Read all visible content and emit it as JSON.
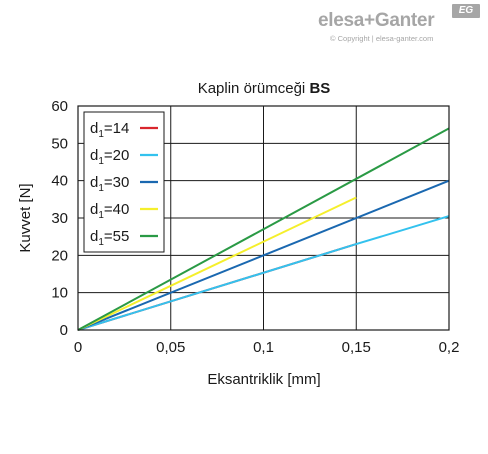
{
  "brand": {
    "name": "elesa+Ganter",
    "badge": "EG",
    "copyright": "© Copyright | elesa-ganter.com"
  },
  "chart_data": {
    "type": "line",
    "title_prefix": "Kaplin örümceği ",
    "title_bold": "BS",
    "xlabel": "Eksantriklik [mm]",
    "ylabel": "Kuvvet [N]",
    "xlim": [
      0,
      0.2
    ],
    "ylim": [
      0,
      60
    ],
    "x_ticks": [
      0,
      0.05,
      0.1,
      0.15,
      0.2
    ],
    "x_tick_labels": [
      "0",
      "0,05",
      "0,1",
      "0,15",
      "0,2"
    ],
    "y_ticks": [
      0,
      10,
      20,
      30,
      40,
      50,
      60
    ],
    "y_tick_labels": [
      "0",
      "10",
      "20",
      "30",
      "40",
      "50",
      "60"
    ],
    "grid": true,
    "legend_position": "top-left",
    "series": [
      {
        "name_main": "d",
        "name_sub": "1",
        "name_rest": "=14",
        "color": "#d9262d",
        "points": [
          [
            0,
            0
          ],
          [
            0.15,
            23
          ]
        ]
      },
      {
        "name_main": "d",
        "name_sub": "1",
        "name_rest": "=20",
        "color": "#33c2ee",
        "points": [
          [
            0,
            0
          ],
          [
            0.15,
            23
          ],
          [
            0.2,
            30.5
          ]
        ]
      },
      {
        "name_main": "d",
        "name_sub": "1",
        "name_rest": "=30",
        "color": "#1a68b0",
        "points": [
          [
            0,
            0
          ],
          [
            0.2,
            40
          ]
        ]
      },
      {
        "name_main": "d",
        "name_sub": "1",
        "name_rest": "=40",
        "color": "#f5ef2c",
        "points": [
          [
            0,
            0
          ],
          [
            0.15,
            35.5
          ]
        ]
      },
      {
        "name_main": "d",
        "name_sub": "1",
        "name_rest": "=55",
        "color": "#2a9a45",
        "points": [
          [
            0,
            0
          ],
          [
            0.2,
            54
          ]
        ]
      }
    ]
  }
}
